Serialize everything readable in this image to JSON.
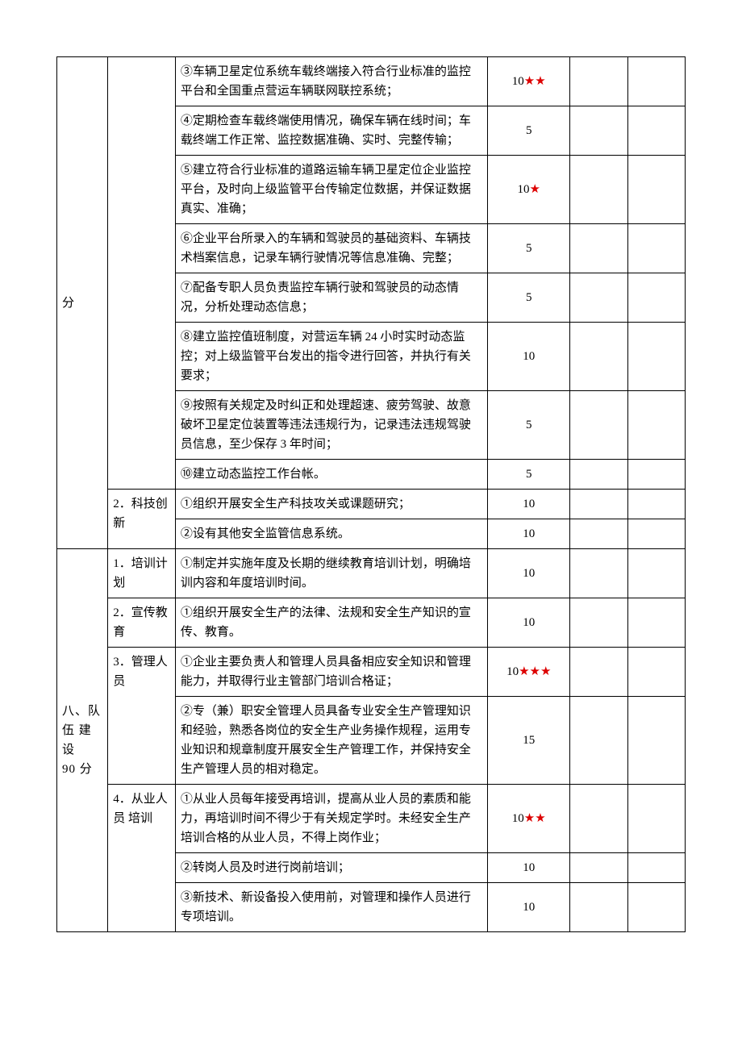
{
  "section1": {
    "cat": "分",
    "rows": [
      {
        "desc": "③车辆卫星定位系统车载终端接入符合行业标准的监控平台和全国重点营运车辆联网联控系统；",
        "score": "10",
        "stars": 2
      },
      {
        "desc": "④定期检查车载终端使用情况，确保车辆在线时间；车载终端工作正常、监控数据准确、实时、完整传输；",
        "score": "5",
        "stars": 0
      },
      {
        "desc": "⑤建立符合行业标准的道路运输车辆卫星定位企业监控平台，及时向上级监管平台传输定位数据，并保证数据真实、准确；",
        "score": "10",
        "stars": 1
      },
      {
        "desc": "⑥企业平台所录入的车辆和驾驶员的基础资料、车辆技术档案信息，记录车辆行驶情况等信息准确、完整；",
        "score": "5",
        "stars": 0
      },
      {
        "desc": "⑦配备专职人员负责监控车辆行驶和驾驶员的动态情况，分析处理动态信息；",
        "score": "5",
        "stars": 0
      },
      {
        "desc": "⑧建立监控值班制度，对营运车辆 24 小时实时动态监控；对上级监管平台发出的指令进行回答，并执行有关要求；",
        "score": "10",
        "stars": 0
      },
      {
        "desc": "⑨按照有关规定及时纠正和处理超速、疲劳驾驶、故意破坏卫星定位装置等违法违规行为，记录违法违规驾驶员信息，至少保存 3 年时间；",
        "score": "5",
        "stars": 0
      },
      {
        "desc": "⑩建立动态监控工作台帐。",
        "score": "5",
        "stars": 0
      }
    ],
    "sub2": {
      "label": "2．科技创新",
      "rows": [
        {
          "desc": "①组织开展安全生产科技攻关或课题研究；",
          "score": "10",
          "stars": 0
        },
        {
          "desc": "②设有其他安全监管信息系统。",
          "score": "10",
          "stars": 0
        }
      ]
    }
  },
  "section2": {
    "cat_lines": [
      "八、队",
      "伍 建",
      "设",
      "90 分"
    ],
    "subs": [
      {
        "label": "1．培训计划",
        "rows": [
          {
            "desc": "①制定并实施年度及长期的继续教育培训计划，明确培训内容和年度培训时间。",
            "score": "10",
            "stars": 0
          }
        ]
      },
      {
        "label": "2．宣传教育",
        "rows": [
          {
            "desc": "①组织开展安全生产的法律、法规和安全生产知识的宣传、教育。",
            "score": "10",
            "stars": 0
          }
        ]
      },
      {
        "label": "3．管理人员",
        "rows": [
          {
            "desc": "①企业主要负责人和管理人员具备相应安全知识和管理能力，并取得行业主管部门培训合格证；",
            "score": "10",
            "stars": 3
          },
          {
            "desc": "②专（兼）职安全管理人员具备专业安全生产管理知识和经验，熟悉各岗位的安全生产业务操作规程，运用专业知识和规章制度开展安全生产管理工作，并保持安全生产管理人员的相对稳定。",
            "score": "15",
            "stars": 0
          }
        ]
      },
      {
        "label": "4．从业人 员 培训",
        "rows": [
          {
            "desc": "①从业人员每年接受再培训，提高从业人员的素质和能力，再培训时间不得少于有关规定学时。未经安全生产培训合格的从业人员，不得上岗作业；",
            "score": "10",
            "stars": 2
          },
          {
            "desc": "②转岗人员及时进行岗前培训；",
            "score": "10",
            "stars": 0
          },
          {
            "desc": "③新技术、新设备投入使用前，对管理和操作人员进行专项培训。",
            "score": "10",
            "stars": 0
          }
        ]
      }
    ]
  },
  "style": {
    "star_char": "★",
    "star_color": "#d00"
  }
}
